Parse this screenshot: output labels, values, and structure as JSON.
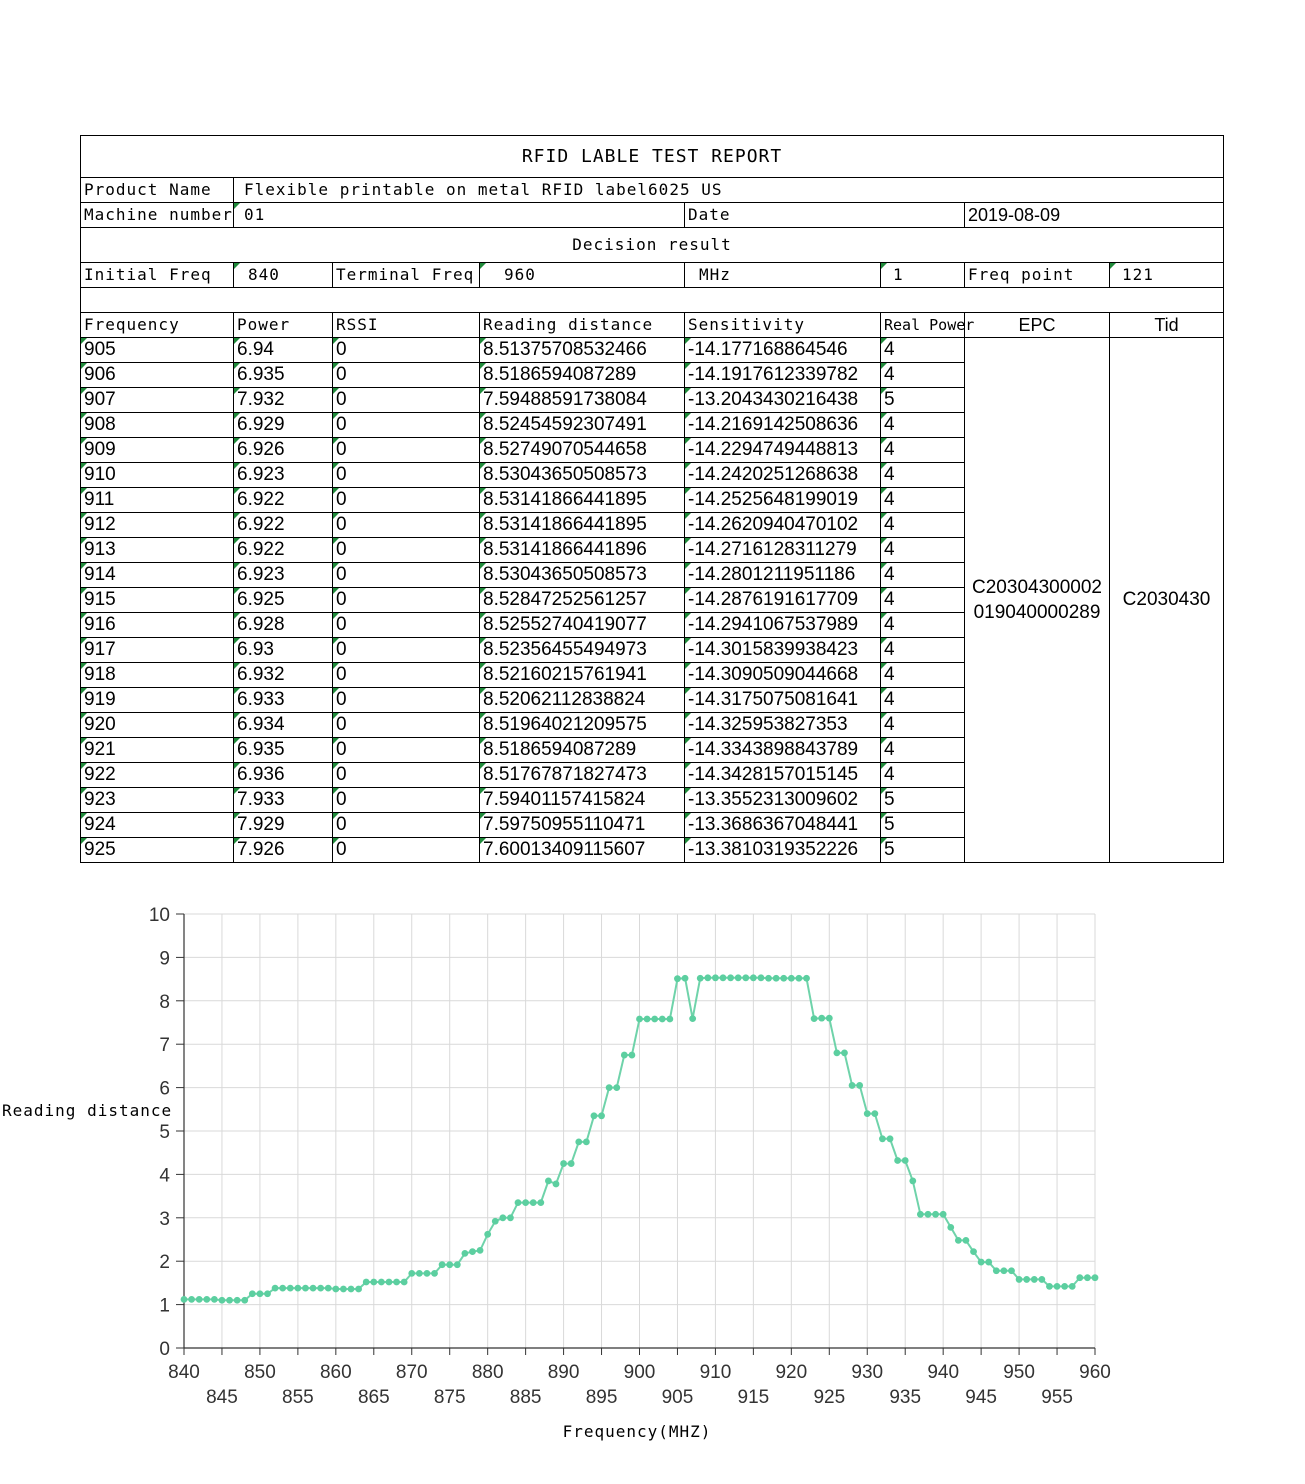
{
  "report": {
    "title": "RFID LABLE TEST REPORT",
    "product_name_label": "Product Name",
    "product_name": "Flexible printable on metal RFID label6025 US",
    "machine_number_label": "Machine number",
    "machine_number": "01",
    "date_label": "Date",
    "date": "2019-08-09",
    "decision_result_label": "Decision result",
    "initial_freq_label": "Initial Freq",
    "initial_freq": "840",
    "terminal_freq_label": "Terminal Freq",
    "terminal_freq": "960",
    "unit_label": "MHz",
    "step": "1",
    "freq_point_label": "Freq point",
    "freq_point": "121",
    "columns": [
      "Frequency",
      "Power",
      "RSSI",
      "Reading distance",
      "Sensitivity",
      "Real Power",
      "EPC",
      "Tid"
    ],
    "epc_line1": "C20304300002",
    "epc_line2": "019040000289",
    "tid": "C2030430",
    "rows": [
      {
        "freq": "905",
        "power": "6.94",
        "rssi": "0",
        "distance": "8.51375708532466",
        "sensitivity": "-14.177168864546",
        "real_power": "4"
      },
      {
        "freq": "906",
        "power": "6.935",
        "rssi": "0",
        "distance": "8.5186594087289",
        "sensitivity": "-14.1917612339782",
        "real_power": "4"
      },
      {
        "freq": "907",
        "power": "7.932",
        "rssi": "0",
        "distance": "7.59488591738084",
        "sensitivity": "-13.2043430216438",
        "real_power": "5"
      },
      {
        "freq": "908",
        "power": "6.929",
        "rssi": "0",
        "distance": "8.52454592307491",
        "sensitivity": "-14.2169142508636",
        "real_power": "4"
      },
      {
        "freq": "909",
        "power": "6.926",
        "rssi": "0",
        "distance": "8.52749070544658",
        "sensitivity": "-14.2294749448813",
        "real_power": "4"
      },
      {
        "freq": "910",
        "power": "6.923",
        "rssi": "0",
        "distance": "8.53043650508573",
        "sensitivity": "-14.2420251268638",
        "real_power": "4"
      },
      {
        "freq": "911",
        "power": "6.922",
        "rssi": "0",
        "distance": "8.53141866441895",
        "sensitivity": "-14.2525648199019",
        "real_power": "4"
      },
      {
        "freq": "912",
        "power": "6.922",
        "rssi": "0",
        "distance": "8.53141866441895",
        "sensitivity": "-14.2620940470102",
        "real_power": "4"
      },
      {
        "freq": "913",
        "power": "6.922",
        "rssi": "0",
        "distance": "8.53141866441896",
        "sensitivity": "-14.2716128311279",
        "real_power": "4"
      },
      {
        "freq": "914",
        "power": "6.923",
        "rssi": "0",
        "distance": "8.53043650508573",
        "sensitivity": "-14.2801211951186",
        "real_power": "4"
      },
      {
        "freq": "915",
        "power": "6.925",
        "rssi": "0",
        "distance": "8.52847252561257",
        "sensitivity": "-14.2876191617709",
        "real_power": "4"
      },
      {
        "freq": "916",
        "power": "6.928",
        "rssi": "0",
        "distance": "8.52552740419077",
        "sensitivity": "-14.2941067537989",
        "real_power": "4"
      },
      {
        "freq": "917",
        "power": "6.93",
        "rssi": "0",
        "distance": "8.52356455494973",
        "sensitivity": "-14.3015839938423",
        "real_power": "4"
      },
      {
        "freq": "918",
        "power": "6.932",
        "rssi": "0",
        "distance": "8.52160215761941",
        "sensitivity": "-14.3090509044668",
        "real_power": "4"
      },
      {
        "freq": "919",
        "power": "6.933",
        "rssi": "0",
        "distance": "8.52062112838824",
        "sensitivity": "-14.3175075081641",
        "real_power": "4"
      },
      {
        "freq": "920",
        "power": "6.934",
        "rssi": "0",
        "distance": "8.51964021209575",
        "sensitivity": "-14.325953827353",
        "real_power": "4"
      },
      {
        "freq": "921",
        "power": "6.935",
        "rssi": "0",
        "distance": "8.5186594087289",
        "sensitivity": "-14.3343898843789",
        "real_power": "4"
      },
      {
        "freq": "922",
        "power": "6.936",
        "rssi": "0",
        "distance": "8.51767871827473",
        "sensitivity": "-14.3428157015145",
        "real_power": "4"
      },
      {
        "freq": "923",
        "power": "7.933",
        "rssi": "0",
        "distance": "7.59401157415824",
        "sensitivity": "-13.3552313009602",
        "real_power": "5"
      },
      {
        "freq": "924",
        "power": "7.929",
        "rssi": "0",
        "distance": "7.59750955110471",
        "sensitivity": "-13.3686367048441",
        "real_power": "5"
      },
      {
        "freq": "925",
        "power": "7.926",
        "rssi": "0",
        "distance": "7.60013409115607",
        "sensitivity": "-13.3810319352226",
        "real_power": "5"
      }
    ]
  },
  "chart_data": {
    "type": "line",
    "xlabel": "Frequency(MHZ)",
    "ylabel": "Reading distance",
    "xlim": [
      840,
      960
    ],
    "ylim": [
      0,
      10
    ],
    "x_ticks_upper": [
      "840",
      "850",
      "860",
      "870",
      "880",
      "890",
      "900",
      "910",
      "920",
      "930",
      "940",
      "950",
      "960"
    ],
    "x_ticks_lower": [
      "845",
      "855",
      "865",
      "875",
      "885",
      "895",
      "905",
      "915",
      "925",
      "935",
      "945",
      "955"
    ],
    "y_ticks": [
      "0",
      "1",
      "2",
      "3",
      "4",
      "5",
      "6",
      "7",
      "8",
      "9",
      "10"
    ],
    "grid": true,
    "line_color": "#6fd3aa",
    "marker_color": "#5ccfa0",
    "series": [
      {
        "x": [
          840,
          841,
          842,
          843,
          844,
          845,
          846,
          847,
          848,
          849,
          850,
          851,
          852,
          853,
          854,
          855,
          856,
          857,
          858,
          859,
          860,
          861,
          862,
          863,
          864,
          865,
          866,
          867,
          868,
          869,
          870,
          871,
          872,
          873,
          874,
          875,
          876,
          877,
          878,
          879,
          880,
          881,
          882,
          883,
          884,
          885,
          886,
          887,
          888,
          889,
          890,
          891,
          892,
          893,
          894,
          895,
          896,
          897,
          898,
          899,
          900,
          901,
          902,
          903,
          904,
          905,
          906,
          907,
          908,
          909,
          910,
          911,
          912,
          913,
          914,
          915,
          916,
          917,
          918,
          919,
          920,
          921,
          922,
          923,
          924,
          925,
          926,
          927,
          928,
          929,
          930,
          931,
          932,
          933,
          934,
          935,
          936,
          937,
          938,
          939,
          940,
          941,
          942,
          943,
          944,
          945,
          946,
          947,
          948,
          949,
          950,
          951,
          952,
          953,
          954,
          955,
          956,
          957,
          958,
          959,
          960
        ],
        "y": [
          1.12,
          1.12,
          1.12,
          1.12,
          1.12,
          1.1,
          1.1,
          1.1,
          1.1,
          1.25,
          1.25,
          1.25,
          1.38,
          1.38,
          1.38,
          1.38,
          1.38,
          1.38,
          1.38,
          1.38,
          1.36,
          1.36,
          1.36,
          1.36,
          1.52,
          1.52,
          1.52,
          1.52,
          1.52,
          1.52,
          1.72,
          1.72,
          1.72,
          1.72,
          1.92,
          1.92,
          1.92,
          2.18,
          2.22,
          2.25,
          2.62,
          2.92,
          3.0,
          3.0,
          3.35,
          3.35,
          3.35,
          3.35,
          3.85,
          3.78,
          4.25,
          4.25,
          4.75,
          4.75,
          5.35,
          5.35,
          6.0,
          6.0,
          6.75,
          6.75,
          7.58,
          7.58,
          7.58,
          7.58,
          7.58,
          8.51,
          8.52,
          7.59,
          8.52,
          8.53,
          8.53,
          8.53,
          8.53,
          8.53,
          8.53,
          8.53,
          8.53,
          8.52,
          8.52,
          8.52,
          8.52,
          8.52,
          8.52,
          7.59,
          7.6,
          7.6,
          6.8,
          6.8,
          6.05,
          6.05,
          5.4,
          5.4,
          4.82,
          4.82,
          4.32,
          4.32,
          3.85,
          3.08,
          3.08,
          3.08,
          3.08,
          2.78,
          2.48,
          2.48,
          2.22,
          1.98,
          1.98,
          1.78,
          1.78,
          1.78,
          1.58,
          1.58,
          1.58,
          1.58,
          1.42,
          1.42,
          1.42,
          1.42,
          1.62,
          1.62,
          1.62
        ]
      }
    ]
  }
}
